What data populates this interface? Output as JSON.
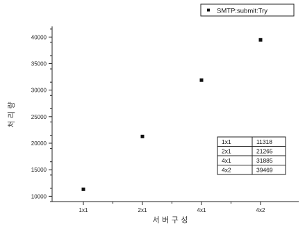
{
  "chart_data": {
    "type": "scatter",
    "categories": [
      "1x1",
      "2x1",
      "4x1",
      "4x2"
    ],
    "series": [
      {
        "name": "SMTP:submit:Try",
        "values": [
          11318,
          21265,
          31885,
          39469
        ]
      }
    ],
    "xlabel": "서 버 구 성",
    "ylabel": "처 리 량",
    "ylim": [
      9000,
      42000
    ],
    "yticks": [
      10000,
      15000,
      20000,
      25000,
      30000,
      35000,
      40000
    ],
    "grid": false,
    "legend": "top-right",
    "table": {
      "rows": [
        [
          "1x1",
          "11318"
        ],
        [
          "2x1",
          "21265"
        ],
        [
          "4x1",
          "31885"
        ],
        [
          "4x2",
          "39469"
        ]
      ]
    }
  }
}
